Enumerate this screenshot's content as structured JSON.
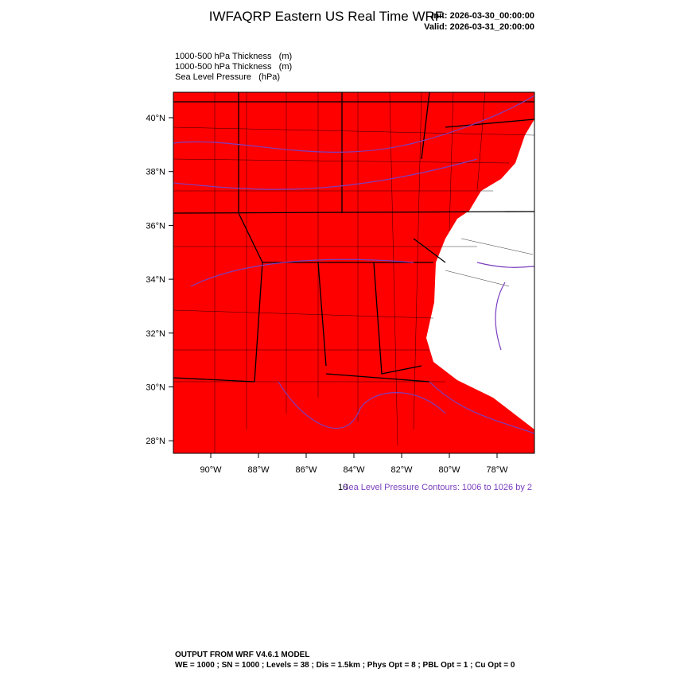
{
  "header": {
    "title": "IWFAQRP Eastern US Real Time WRF",
    "init": "Init: 2026-03-30_00:00:00",
    "valid": "Valid: 2026-03-31_20:00:00"
  },
  "fields": [
    "1000-500 hPa Thickness   (m)",
    "1000-500 hPa Thickness   (m)",
    "Sea Level Pressure   (hPa)"
  ],
  "map": {
    "lat_labels": [
      "40°N",
      "38°N",
      "36°N",
      "34°N",
      "32°N",
      "30°N",
      "28°N"
    ],
    "lon_labels": [
      "90°W",
      "88°W",
      "86°W",
      "84°W",
      "82°W",
      "80°W",
      "78°W"
    ]
  },
  "contour_note": {
    "prefix": "10",
    "text": "Sea Level Pressure Contours: 1006 to 1026 by 2"
  },
  "footer": {
    "line1": "OUTPUT FROM WRF V4.6.1 MODEL",
    "line2": "WE = 1000 ; SN = 1000 ; Levels = 38 ; Dis = 1.5km ; Phys Opt = 8 ; PBL Opt = 1 ; Cu Opt = 0"
  }
}
